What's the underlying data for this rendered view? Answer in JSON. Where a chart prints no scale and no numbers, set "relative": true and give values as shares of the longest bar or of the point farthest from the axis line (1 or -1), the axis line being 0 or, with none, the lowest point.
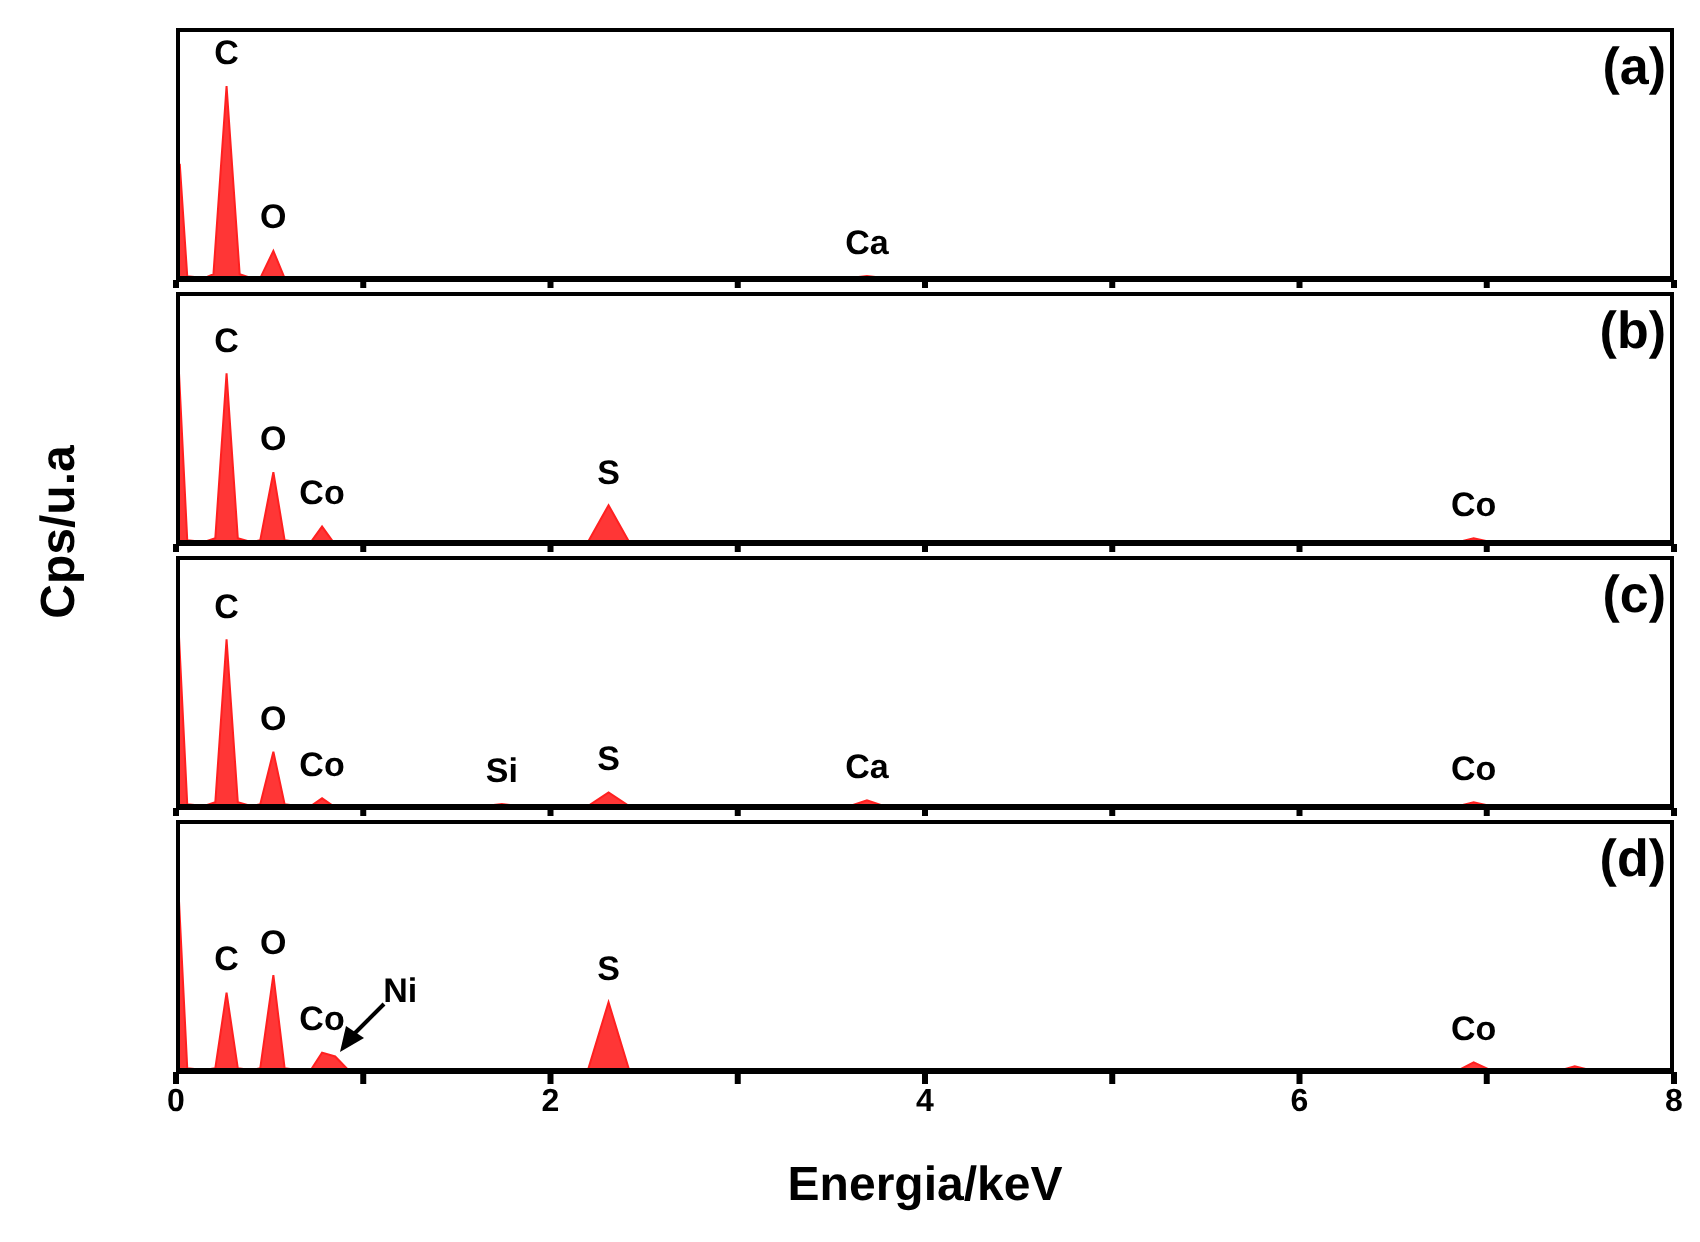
{
  "chart_data": [
    {
      "type": "area",
      "relative": true,
      "color": "#ff2020",
      "ylabel": "Cps/u.a",
      "xlim": [
        0,
        8
      ],
      "xticks": [
        0,
        {
          "value": 1,
          "label": null
        },
        2,
        {
          "value": 3,
          "label": null
        },
        4,
        {
          "value": 5,
          "label": null
        },
        6,
        {
          "value": 7,
          "label": null
        },
        8
      ],
      "tick_labels": false,
      "x": [
        0,
        0.02,
        0.06,
        0.15,
        0.2,
        0.27,
        0.34,
        0.4,
        0.45,
        0.52,
        0.58,
        0.65,
        1,
        2,
        3,
        3.6,
        3.69,
        3.78,
        5,
        7,
        8
      ],
      "values": [
        0.1,
        0.6,
        0.02,
        0.01,
        0.03,
        1,
        0.03,
        0.01,
        0.01,
        0.15,
        0.01,
        0.01,
        0.01,
        0.01,
        0.01,
        0.01,
        0.02,
        0.01,
        0.01,
        0.01,
        0.01
      ],
      "annotations": [
        "(a)",
        {
          "text": "C",
          "x": 0.27,
          "y": 1
        },
        {
          "text": "O",
          "x": 0.52,
          "y": 0.15
        },
        {
          "text": "Ca",
          "x": 3.69,
          "y": 0.02
        }
      ]
    },
    {
      "type": "area",
      "relative": true,
      "color": "#ff2020",
      "xlim": [
        0,
        8
      ],
      "xticks": [
        0,
        {
          "value": 1,
          "label": null
        },
        2,
        {
          "value": 3,
          "label": null
        },
        4,
        {
          "value": 5,
          "label": null
        },
        6,
        {
          "value": 7,
          "label": null
        },
        8
      ],
      "tick_labels": false,
      "x": [
        0,
        0.01,
        0.06,
        0.15,
        0.21,
        0.27,
        0.33,
        0.4,
        0.45,
        0.52,
        0.58,
        0.65,
        0.72,
        0.78,
        0.84,
        0.95,
        1.5,
        2.2,
        2.31,
        2.42,
        3,
        5,
        6.85,
        6.93,
        7.02,
        8
      ],
      "values": [
        0.5,
        1,
        0.02,
        0.01,
        0.03,
        0.88,
        0.03,
        0.01,
        0.02,
        0.37,
        0.02,
        0.01,
        0.01,
        0.09,
        0.01,
        0.01,
        0.01,
        0.01,
        0.2,
        0.01,
        0.01,
        0.01,
        0.01,
        0.03,
        0.01,
        0.01
      ],
      "annotations": [
        "(b)",
        {
          "text": "C",
          "x": 0.27,
          "y": 0.88
        },
        {
          "text": "O",
          "x": 0.52,
          "y": 0.37
        },
        {
          "text": "Co",
          "x": 0.78,
          "y": 0.09
        },
        {
          "text": "S",
          "x": 2.31,
          "y": 0.2
        },
        {
          "text": "Co",
          "x": 6.93,
          "y": 0.03
        }
      ]
    },
    {
      "type": "area",
      "relative": true,
      "color": "#ff2020",
      "xlim": [
        0,
        8
      ],
      "xticks": [
        0,
        {
          "value": 1,
          "label": null
        },
        2,
        {
          "value": 3,
          "label": null
        },
        4,
        {
          "value": 5,
          "label": null
        },
        6,
        {
          "value": 7,
          "label": null
        },
        8
      ],
      "tick_labels": false,
      "x": [
        0,
        0.01,
        0.06,
        0.15,
        0.21,
        0.27,
        0.33,
        0.4,
        0.45,
        0.52,
        0.58,
        0.65,
        0.72,
        0.78,
        0.84,
        0.95,
        1.65,
        1.74,
        1.83,
        2.2,
        2.31,
        2.42,
        3,
        3.6,
        3.69,
        3.78,
        5,
        6.85,
        6.93,
        7.02,
        8
      ],
      "values": [
        0.5,
        1,
        0.02,
        0.01,
        0.03,
        0.87,
        0.03,
        0.01,
        0.02,
        0.29,
        0.02,
        0.01,
        0.01,
        0.05,
        0.01,
        0.01,
        0.01,
        0.02,
        0.01,
        0.01,
        0.08,
        0.01,
        0.01,
        0.01,
        0.04,
        0.01,
        0.01,
        0.01,
        0.03,
        0.01,
        0.01
      ],
      "annotations": [
        "(c)",
        {
          "text": "C",
          "x": 0.27,
          "y": 0.87
        },
        {
          "text": "O",
          "x": 0.52,
          "y": 0.29
        },
        {
          "text": "Co",
          "x": 0.78,
          "y": 0.05
        },
        {
          "text": "Si",
          "x": 1.74,
          "y": 0.02
        },
        {
          "text": "S",
          "x": 2.31,
          "y": 0.08
        },
        {
          "text": "Ca",
          "x": 3.69,
          "y": 0.04
        },
        {
          "text": "Co",
          "x": 6.93,
          "y": 0.03
        }
      ]
    },
    {
      "type": "area",
      "relative": true,
      "color": "#ff2020",
      "xlabel": "Energia/keV",
      "xlim": [
        0,
        8
      ],
      "xticks": [
        0,
        {
          "value": 1,
          "label": null
        },
        2,
        {
          "value": 3,
          "label": null
        },
        4,
        {
          "value": 5,
          "label": null
        },
        6,
        {
          "value": 7,
          "label": null
        },
        8
      ],
      "tick_labels": "x",
      "x": [
        0,
        0.01,
        0.06,
        0.15,
        0.21,
        0.27,
        0.33,
        0.4,
        0.45,
        0.52,
        0.58,
        0.65,
        0.72,
        0.78,
        0.85,
        0.92,
        1.0,
        1.5,
        2.2,
        2.31,
        2.42,
        3,
        5,
        6.85,
        6.93,
        7.02,
        7.4,
        7.47,
        7.55,
        8
      ],
      "values": [
        0.4,
        1,
        0.02,
        0.01,
        0.02,
        0.41,
        0.02,
        0.01,
        0.02,
        0.5,
        0.02,
        0.01,
        0.01,
        0.1,
        0.08,
        0.01,
        0.01,
        0.01,
        0.01,
        0.36,
        0.01,
        0.01,
        0.01,
        0.01,
        0.05,
        0.01,
        0.01,
        0.03,
        0.01,
        0.01
      ],
      "annotations": [
        "(d)",
        {
          "text": "C",
          "x": 0.27,
          "y": 0.41
        },
        {
          "text": "O",
          "x": 0.52,
          "y": 0.5
        },
        {
          "text": "Co",
          "x": 0.78,
          "y": 0.1
        },
        {
          "text": "Ni",
          "x": 0.85,
          "y": 0.08
        },
        {
          "text": "S",
          "x": 2.31,
          "y": 0.36
        },
        {
          "text": "Co",
          "x": 6.93,
          "y": 0.05
        }
      ]
    }
  ]
}
